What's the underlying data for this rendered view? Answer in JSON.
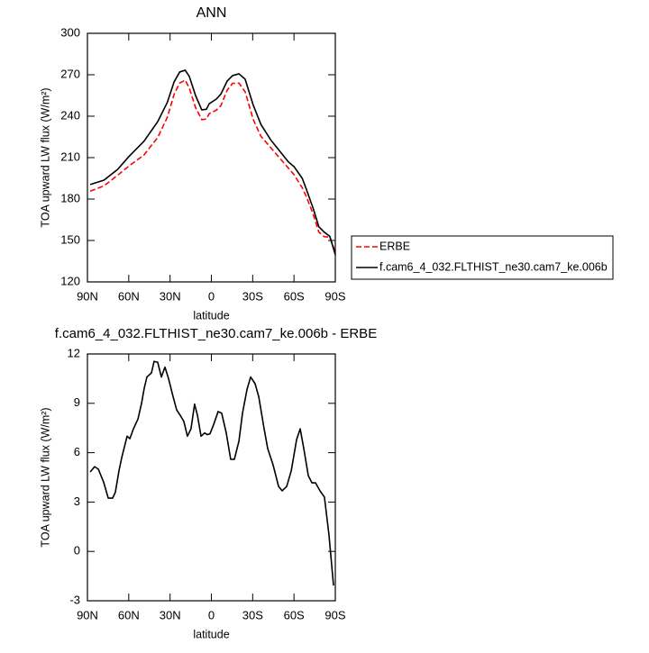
{
  "chart_data": [
    {
      "type": "line",
      "title": "ANN",
      "xlabel": "latitude",
      "ylabel": "TOA upward LW flux (W/m²)",
      "xlim": [
        90,
        -90
      ],
      "ylim": [
        120,
        300
      ],
      "xticks": [
        {
          "value": 90,
          "label": "90N"
        },
        {
          "value": 60,
          "label": "60N"
        },
        {
          "value": 30,
          "label": "30N"
        },
        0,
        {
          "value": -30,
          "label": "30S"
        },
        {
          "value": -60,
          "label": "60S"
        },
        {
          "value": -90,
          "label": "90S"
        }
      ],
      "yticks": [
        120,
        150,
        180,
        210,
        240,
        270,
        300
      ],
      "legend": "outside-right",
      "x": [
        88,
        78,
        68,
        60,
        49,
        39,
        32,
        27,
        23,
        19,
        16,
        11.5,
        7,
        3.6,
        1.6,
        -3.6,
        -6.9,
        -11.5,
        -15.4,
        -20,
        -24.5,
        -30.4,
        -36,
        -43,
        -56,
        -60,
        -66,
        -69,
        -74,
        -78,
        -82,
        -86,
        -90
      ],
      "series": [
        {
          "name": "ERBE",
          "color": "#ff0000",
          "line_style": "dashed",
          "values": [
            185.7,
            189.5,
            197.3,
            203.8,
            211.9,
            224.5,
            239.2,
            256,
            264,
            266.1,
            260.3,
            246.3,
            237.5,
            237.9,
            241.8,
            244.4,
            247.6,
            258.9,
            263.8,
            264,
            257.7,
            237.6,
            225.4,
            217.3,
            202.3,
            197.7,
            188.1,
            181.7,
            168.8,
            156.2,
            152.7,
            152.5,
            141.6
          ]
        },
        {
          "name": "f.cam6_4_032.FLTHIST_ne30.cam7_ke.006b",
          "color": "#000000",
          "line_style": "solid",
          "values": [
            190.5,
            193.7,
            201.5,
            210.7,
            221.8,
            236,
            250,
            265,
            272,
            273.3,
            268.7,
            255,
            244.6,
            245,
            249,
            252.4,
            256,
            265.5,
            269.4,
            270.7,
            266.8,
            248,
            234,
            223,
            206.8,
            203.5,
            195,
            187,
            173,
            160,
            156,
            153,
            139.6
          ]
        }
      ]
    },
    {
      "type": "line",
      "title": "f.cam6_4_032.FLTHIST_ne30.cam7_ke.006b - ERBE",
      "xlabel": "latitude",
      "ylabel": "TOA upward LW flux (W/m²)",
      "xlim": [
        90,
        -90
      ],
      "ylim": [
        -3,
        12
      ],
      "xticks": [
        {
          "value": 90,
          "label": "90N"
        },
        {
          "value": 60,
          "label": "60N"
        },
        {
          "value": 30,
          "label": "30N"
        },
        0,
        {
          "value": -30,
          "label": "30S"
        },
        {
          "value": -60,
          "label": "60S"
        },
        {
          "value": -90,
          "label": "90S"
        }
      ],
      "yticks": [
        -3,
        0,
        3,
        6,
        9,
        12
      ],
      "x": [
        88,
        84.8,
        82.1,
        78.2,
        74.9,
        71.7,
        69.7,
        67.1,
        65.1,
        61.2,
        59.2,
        56.6,
        53.3,
        50.7,
        48.8,
        46.8,
        43.5,
        41.6,
        39,
        36.3,
        33.7,
        31.1,
        27.8,
        25.2,
        22.6,
        20,
        17.4,
        14.8,
        12.2,
        10.1,
        7.5,
        4.9,
        2.9,
        1,
        -1.6,
        -4.9,
        -7.5,
        -10.8,
        -14,
        -16.7,
        -20,
        -22.6,
        -25.9,
        -28.5,
        -31.7,
        -34.4,
        -38.3,
        -40.9,
        -44.8,
        -48.8,
        -51.4,
        -54.7,
        -58,
        -61.9,
        -64.5,
        -67.1,
        -70.4,
        -73,
        -75.6,
        -78.9,
        -82.1,
        -85.4,
        -88.7
      ],
      "series": [
        {
          "color": "#000000",
          "line_style": "solid",
          "values": [
            4.83,
            5.15,
            5,
            4.2,
            3.24,
            3.24,
            3.6,
            4.9,
            5.7,
            7,
            6.85,
            7.45,
            8.05,
            9,
            9.9,
            10.6,
            10.85,
            11.55,
            11.5,
            10.6,
            11.2,
            10.5,
            9.4,
            8.6,
            8.27,
            7.9,
            7,
            7.45,
            8.95,
            8.27,
            7,
            7.2,
            7.1,
            7.15,
            7.7,
            8.5,
            8.4,
            7.2,
            5.6,
            5.6,
            6.7,
            8.4,
            9.85,
            10.6,
            10.2,
            9.4,
            7.45,
            6.25,
            5.26,
            3.95,
            3.68,
            3.95,
            4.9,
            6.8,
            7.45,
            6.25,
            4.6,
            4.17,
            4.17,
            3.68,
            3.3,
            1,
            -2.07
          ]
        }
      ]
    }
  ]
}
